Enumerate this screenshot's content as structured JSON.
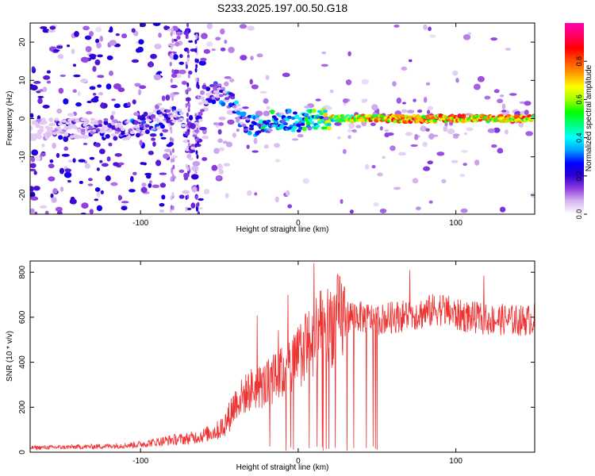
{
  "title": "S233.2025.197.00.50.G18",
  "chart_data": [
    {
      "type": "heatmap",
      "xlabel": "Height of straight line (km)",
      "ylabel": "Frequency (Hz)",
      "xlim": [
        -170,
        150
      ],
      "ylim": [
        -25,
        25
      ],
      "xticks": [
        -100,
        0,
        100
      ],
      "yticks": [
        -20,
        -10,
        0,
        10,
        20
      ],
      "colorbar": {
        "label": "Normalized spectral amplitude",
        "range": [
          0,
          1
        ],
        "ticks": [
          "0.0",
          "0.2",
          "0.4",
          "0.6",
          "0.8"
        ],
        "colors": [
          "#ffffff",
          "#d8b8f0",
          "#9040e0",
          "#3000d0",
          "#0000ff",
          "#00a0ff",
          "#00ffff",
          "#00ff80",
          "#00ff00",
          "#a0ff00",
          "#ffff00",
          "#ffa000",
          "#ff5000",
          "#ff0000",
          "#ff0060",
          "#ff00b0"
        ]
      },
      "ridge": {
        "x": [
          -170,
          -150,
          -130,
          -110,
          -95,
          -85,
          -75,
          -68,
          -60,
          -50,
          -42,
          -35,
          -28,
          -20,
          -10,
          0,
          10,
          20,
          40,
          60,
          80,
          100,
          120,
          150
        ],
        "y": [
          -3,
          -2.5,
          -2.5,
          -3,
          -1,
          0.5,
          1,
          -10,
          6,
          7,
          4,
          -1,
          -2,
          -1,
          0,
          -1,
          0,
          0,
          0,
          0,
          0,
          0,
          0,
          0
        ],
        "strength": [
          0.1,
          0.25,
          0.25,
          0.35,
          0.35,
          0.35,
          0.3,
          0.3,
          0.3,
          0.35,
          0.4,
          0.4,
          0.5,
          0.55,
          0.5,
          0.55,
          0.65,
          0.75,
          0.9,
          0.95,
          0.95,
          0.95,
          0.95,
          0.9
        ]
      }
    },
    {
      "type": "line",
      "xlabel": "Height of straight line (km)",
      "ylabel": "SNR (10 * v/v)",
      "xlim": [
        -170,
        150
      ],
      "ylim": [
        0,
        850
      ],
      "xticks": [
        -100,
        0,
        100
      ],
      "yticks": [
        0,
        200,
        400,
        600,
        800
      ],
      "color": "#ee3333",
      "series": [
        {
          "x": [
            -170,
            -150,
            -130,
            -110,
            -100,
            -90,
            -80,
            -70,
            -60,
            -50,
            -45,
            -40,
            -35,
            -30,
            -25,
            -20,
            -15,
            -10,
            -5,
            0,
            5,
            10,
            15,
            20,
            25,
            30,
            35,
            40,
            45,
            50,
            60,
            70,
            80,
            90,
            100,
            110,
            120,
            130,
            140,
            150
          ],
          "y": [
            20,
            22,
            25,
            30,
            35,
            45,
            55,
            60,
            75,
            100,
            140,
            220,
            250,
            280,
            290,
            300,
            330,
            350,
            380,
            420,
            470,
            500,
            540,
            570,
            590,
            600,
            610,
            600,
            595,
            590,
            600,
            610,
            620,
            640,
            610,
            600,
            590,
            590,
            585,
            590
          ]
        }
      ],
      "dropouts_x_range": [
        -20,
        50
      ]
    }
  ]
}
